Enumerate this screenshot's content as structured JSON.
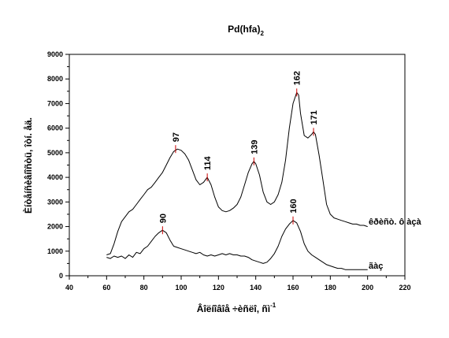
{
  "chart_data": {
    "type": "line",
    "title": "Pd(hfa)",
    "title_subscript": "2",
    "xlabel": "Âîëíîâîå ÷èñëî, ñì",
    "xlabel_superscript": "-1",
    "ylabel": "Èíòåíñèâíîñòü, îòí. åä.",
    "xlim": [
      40,
      220
    ],
    "ylim": [
      0,
      9000
    ],
    "xticks": [
      40,
      60,
      80,
      100,
      120,
      140,
      160,
      180,
      200,
      220
    ],
    "yticks": [
      0,
      1000,
      2000,
      3000,
      4000,
      5000,
      6000,
      7000,
      8000,
      9000
    ],
    "grid": false,
    "series": [
      {
        "name": "êðèñò. ô àçà",
        "color": "#000000",
        "points": [
          [
            60,
            850
          ],
          [
            62,
            900
          ],
          [
            64,
            1300
          ],
          [
            66,
            1800
          ],
          [
            68,
            2200
          ],
          [
            70,
            2400
          ],
          [
            72,
            2600
          ],
          [
            74,
            2700
          ],
          [
            76,
            2900
          ],
          [
            78,
            3100
          ],
          [
            80,
            3300
          ],
          [
            82,
            3500
          ],
          [
            84,
            3600
          ],
          [
            86,
            3800
          ],
          [
            88,
            4000
          ],
          [
            90,
            4200
          ],
          [
            92,
            4500
          ],
          [
            94,
            4800
          ],
          [
            96,
            5050
          ],
          [
            98,
            5150
          ],
          [
            100,
            5100
          ],
          [
            102,
            4950
          ],
          [
            104,
            4700
          ],
          [
            106,
            4300
          ],
          [
            108,
            3900
          ],
          [
            110,
            3700
          ],
          [
            112,
            3800
          ],
          [
            114,
            4000
          ],
          [
            116,
            3700
          ],
          [
            118,
            3200
          ],
          [
            120,
            2800
          ],
          [
            122,
            2650
          ],
          [
            124,
            2600
          ],
          [
            126,
            2650
          ],
          [
            128,
            2750
          ],
          [
            130,
            2900
          ],
          [
            132,
            3200
          ],
          [
            134,
            3700
          ],
          [
            136,
            4200
          ],
          [
            138,
            4550
          ],
          [
            139,
            4650
          ],
          [
            140,
            4550
          ],
          [
            142,
            4100
          ],
          [
            144,
            3400
          ],
          [
            146,
            3000
          ],
          [
            148,
            2900
          ],
          [
            150,
            3000
          ],
          [
            152,
            3300
          ],
          [
            154,
            3800
          ],
          [
            156,
            4700
          ],
          [
            158,
            6000
          ],
          [
            160,
            7000
          ],
          [
            162,
            7450
          ],
          [
            163,
            7350
          ],
          [
            164,
            6600
          ],
          [
            166,
            5700
          ],
          [
            168,
            5600
          ],
          [
            170,
            5750
          ],
          [
            171,
            5850
          ],
          [
            172,
            5750
          ],
          [
            174,
            4900
          ],
          [
            176,
            3900
          ],
          [
            178,
            2900
          ],
          [
            180,
            2500
          ],
          [
            182,
            2350
          ],
          [
            184,
            2300
          ],
          [
            186,
            2250
          ],
          [
            188,
            2200
          ],
          [
            190,
            2150
          ],
          [
            192,
            2100
          ],
          [
            194,
            2100
          ],
          [
            196,
            2050
          ],
          [
            198,
            2050
          ],
          [
            200,
            2000
          ]
        ]
      },
      {
        "name": "ãàç",
        "color": "#000000",
        "points": [
          [
            60,
            750
          ],
          [
            62,
            700
          ],
          [
            64,
            800
          ],
          [
            66,
            750
          ],
          [
            68,
            800
          ],
          [
            70,
            700
          ],
          [
            72,
            850
          ],
          [
            74,
            750
          ],
          [
            76,
            950
          ],
          [
            78,
            900
          ],
          [
            80,
            1100
          ],
          [
            82,
            1200
          ],
          [
            84,
            1400
          ],
          [
            86,
            1600
          ],
          [
            88,
            1750
          ],
          [
            90,
            1850
          ],
          [
            92,
            1750
          ],
          [
            94,
            1450
          ],
          [
            96,
            1200
          ],
          [
            98,
            1150
          ],
          [
            100,
            1100
          ],
          [
            102,
            1050
          ],
          [
            104,
            1000
          ],
          [
            106,
            950
          ],
          [
            108,
            900
          ],
          [
            110,
            950
          ],
          [
            112,
            850
          ],
          [
            114,
            800
          ],
          [
            116,
            850
          ],
          [
            118,
            800
          ],
          [
            120,
            850
          ],
          [
            122,
            900
          ],
          [
            124,
            850
          ],
          [
            126,
            900
          ],
          [
            128,
            850
          ],
          [
            130,
            850
          ],
          [
            132,
            800
          ],
          [
            134,
            800
          ],
          [
            136,
            750
          ],
          [
            138,
            650
          ],
          [
            140,
            600
          ],
          [
            142,
            550
          ],
          [
            144,
            500
          ],
          [
            146,
            550
          ],
          [
            148,
            700
          ],
          [
            150,
            900
          ],
          [
            152,
            1200
          ],
          [
            154,
            1600
          ],
          [
            156,
            1900
          ],
          [
            158,
            2100
          ],
          [
            160,
            2250
          ],
          [
            162,
            2150
          ],
          [
            164,
            1800
          ],
          [
            166,
            1300
          ],
          [
            168,
            1000
          ],
          [
            170,
            850
          ],
          [
            172,
            750
          ],
          [
            174,
            650
          ],
          [
            176,
            550
          ],
          [
            178,
            450
          ],
          [
            180,
            400
          ],
          [
            182,
            350
          ],
          [
            184,
            300
          ],
          [
            186,
            300
          ],
          [
            188,
            250
          ],
          [
            190,
            250
          ],
          [
            192,
            250
          ],
          [
            194,
            250
          ],
          [
            196,
            250
          ],
          [
            198,
            250
          ],
          [
            200,
            250
          ]
        ]
      }
    ],
    "peaks": [
      {
        "label": "97",
        "x": 97,
        "y": 5150
      },
      {
        "label": "114",
        "x": 114,
        "y": 4000
      },
      {
        "label": "139",
        "x": 139,
        "y": 4650
      },
      {
        "label": "162",
        "x": 162,
        "y": 7450
      },
      {
        "label": "171",
        "x": 171,
        "y": 5850
      },
      {
        "label": "90",
        "x": 90,
        "y": 1850
      },
      {
        "label": "160",
        "x": 160,
        "y": 2250
      }
    ],
    "peak_marker_color": "#cc0000"
  }
}
